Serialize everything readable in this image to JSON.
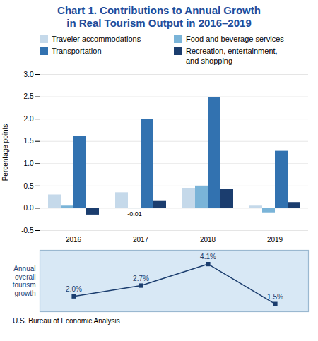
{
  "chart_data": [
    {
      "type": "bar",
      "title": "Chart 1. Contributions to Annual Growth",
      "subtitle": "in Real Tourism Output in 2016–2019",
      "footnote": "U.S. Bureau of Economic Analysis",
      "ylabel": "Percentage points",
      "categories": [
        "2016",
        "2017",
        "2018",
        "2019"
      ],
      "series": [
        {
          "name": "Traveler accommodations",
          "color": "#c5d9ea",
          "values": [
            0.3,
            0.35,
            0.45,
            0.05
          ]
        },
        {
          "name": "Food and beverage services",
          "color": "#7ab4d8",
          "values": [
            0.05,
            -0.01,
            0.5,
            -0.1
          ]
        },
        {
          "name": "Transportation",
          "color": "#3272b0",
          "values": [
            1.62,
            2.0,
            2.48,
            1.28
          ]
        },
        {
          "name": "Recreation, entertainment,\nand shopping",
          "color": "#1b3d6e",
          "values": [
            -0.15,
            0.17,
            0.42,
            0.13
          ]
        }
      ],
      "ylim": [
        -0.5,
        3.0
      ],
      "yticks": [
        -0.5,
        {
          "value": 0,
          "label": "0.0"
        },
        0.5,
        {
          "value": 1,
          "label": "1.0"
        },
        1.5,
        {
          "value": 2,
          "label": "2.0"
        },
        2.5,
        {
          "value": 3,
          "label": "3.0"
        }
      ],
      "grid": true,
      "legend": "upper left",
      "annotations": [
        {
          "text": "-0.01",
          "category": "2017",
          "series": "Food and beverage services",
          "value": -0.01
        }
      ]
    },
    {
      "type": "line",
      "ylabel": "Annual\noverall\ntourism\ngrowth",
      "categories": [
        "2016",
        "2017",
        "2018",
        "2019"
      ],
      "values": [
        2.0,
        2.7,
        4.1,
        1.5
      ],
      "value_labels": [
        "2.0%",
        "2.7%",
        "4.1%",
        "1.5%"
      ],
      "data_labels": true,
      "color": "#1b3d6e",
      "marker": "square",
      "ylim": [
        1.0,
        5.0
      ],
      "tick_labels": false
    }
  ]
}
